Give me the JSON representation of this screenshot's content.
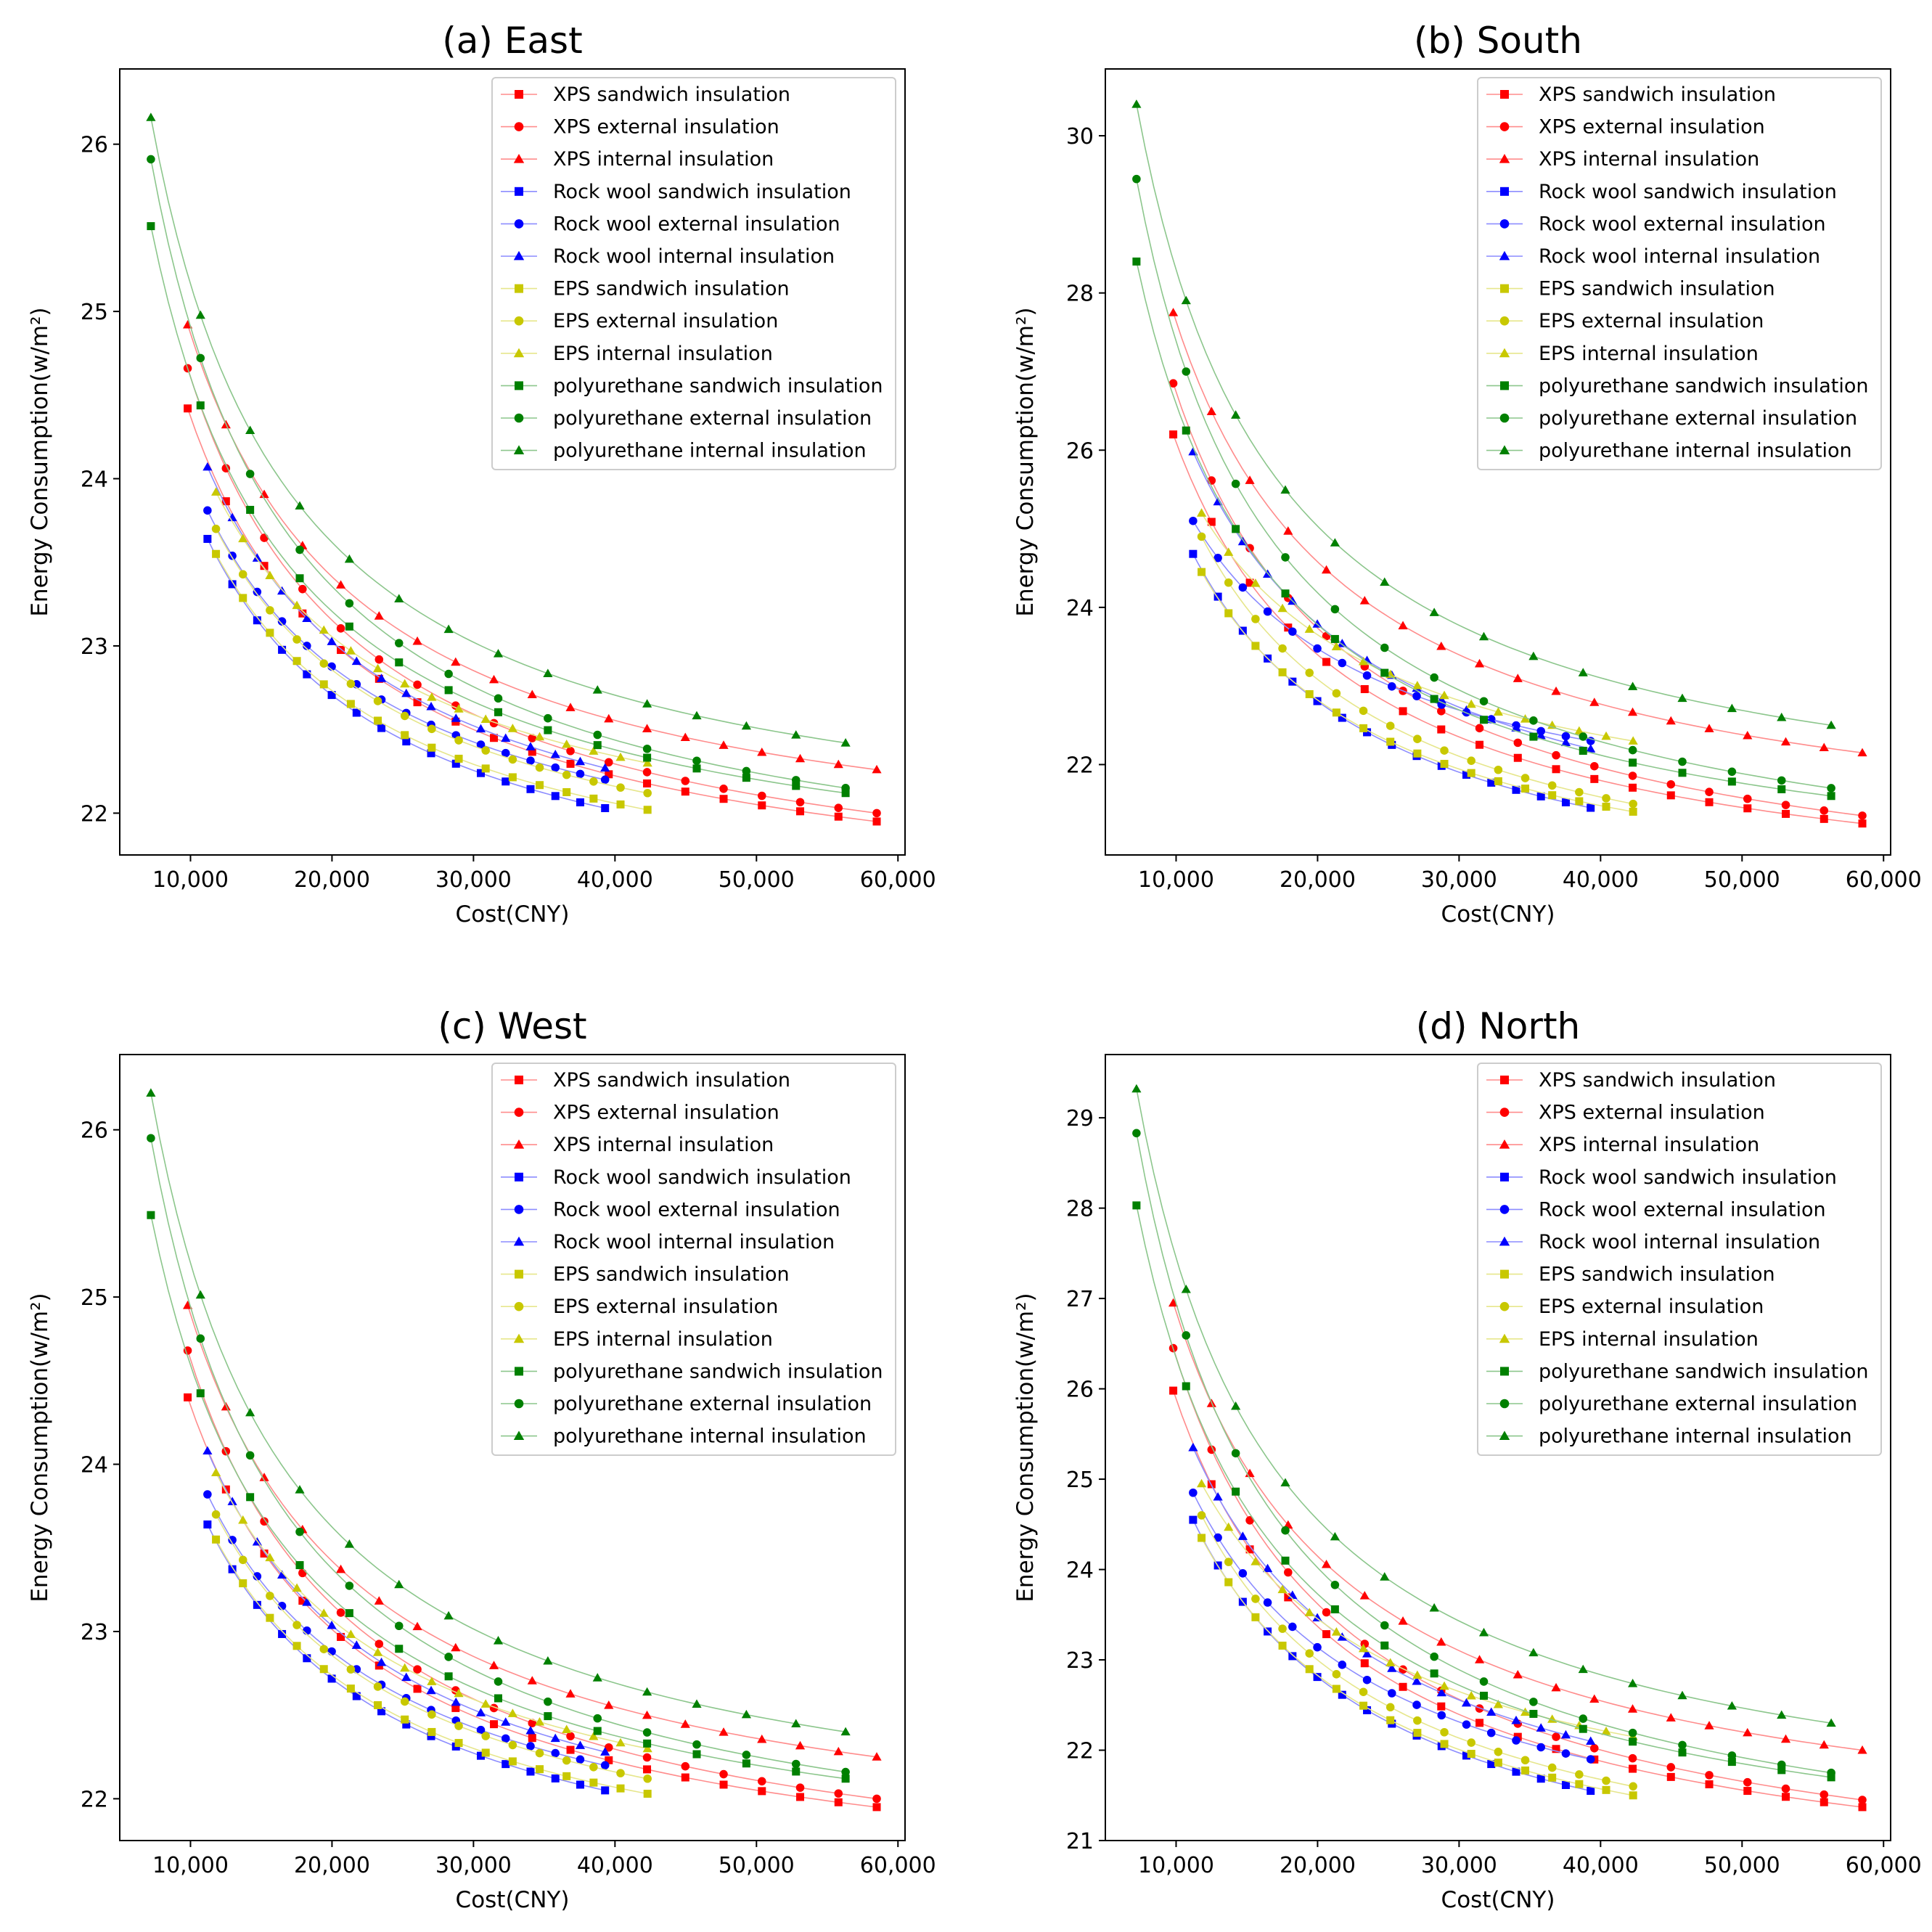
{
  "figure": {
    "xlabel": "Cost(CNY)",
    "ylabel": "Energy Consumption(w/m²)"
  },
  "legend_entries": [
    {
      "label": "XPS sandwich insulation",
      "color": "#ff0000",
      "marker": "square"
    },
    {
      "label": "XPS external insulation",
      "color": "#ff0000",
      "marker": "circle"
    },
    {
      "label": "XPS internal insulation",
      "color": "#ff0000",
      "marker": "triangle"
    },
    {
      "label": "Rock wool sandwich insulation",
      "color": "#0000ff",
      "marker": "square"
    },
    {
      "label": "Rock wool external insulation",
      "color": "#0000ff",
      "marker": "circle"
    },
    {
      "label": "Rock wool internal insulation",
      "color": "#0000ff",
      "marker": "triangle"
    },
    {
      "label": "EPS sandwich insulation",
      "color": "#c8c800",
      "marker": "square"
    },
    {
      "label": "EPS external insulation",
      "color": "#c8c800",
      "marker": "circle"
    },
    {
      "label": "EPS internal insulation",
      "color": "#c8c800",
      "marker": "triangle"
    },
    {
      "label": "polyurethane sandwich insulation",
      "color": "#008000",
      "marker": "square"
    },
    {
      "label": "polyurethane external insulation",
      "color": "#008000",
      "marker": "circle"
    },
    {
      "label": "polyurethane internal insulation",
      "color": "#008000",
      "marker": "triangle"
    }
  ],
  "chart_data": [
    {
      "type": "scatter",
      "title": "(a) East",
      "xlabel": "Cost(CNY)",
      "ylabel": "Energy Consumption(w/m²)",
      "xlim": [
        5000,
        60500
      ],
      "ylim": [
        21.75,
        26.45
      ],
      "xticks": [
        10000,
        20000,
        30000,
        40000,
        50000,
        60000
      ],
      "xtick_labels": [
        "10,000",
        "20,000",
        "30,000",
        "40,000",
        "50,000",
        "60,000"
      ],
      "yticks": [
        22,
        23,
        24,
        25,
        26
      ],
      "ytick_labels": [
        "22",
        "23",
        "24",
        "25",
        "26"
      ],
      "legend_position": "top-right",
      "series": [
        {
          "name": "XPS sandwich insulation",
          "x": [
            9800,
            58500
          ],
          "y": [
            24.42,
            21.95
          ],
          "points": 19
        },
        {
          "name": "XPS external insulation",
          "x": [
            9800,
            58500
          ],
          "y": [
            24.66,
            22.0
          ],
          "points": 19
        },
        {
          "name": "XPS internal insulation",
          "x": [
            9800,
            58500
          ],
          "y": [
            24.92,
            22.26
          ],
          "points": 19
        },
        {
          "name": "Rock wool sandwich insulation",
          "x": [
            11200,
            39300
          ],
          "y": [
            23.64,
            22.03
          ],
          "points": 17
        },
        {
          "name": "Rock wool external insulation",
          "x": [
            11200,
            39300
          ],
          "y": [
            23.81,
            22.2
          ],
          "points": 17
        },
        {
          "name": "Rock wool internal insulation",
          "x": [
            11200,
            39300
          ],
          "y": [
            24.07,
            22.27
          ],
          "points": 17
        },
        {
          "name": "EPS sandwich insulation",
          "x": [
            11800,
            42300
          ],
          "y": [
            23.55,
            22.02
          ],
          "points": 17
        },
        {
          "name": "EPS external insulation",
          "x": [
            11800,
            42300
          ],
          "y": [
            23.7,
            22.12
          ],
          "points": 17
        },
        {
          "name": "EPS internal insulation",
          "x": [
            11800,
            42300
          ],
          "y": [
            23.92,
            22.3
          ],
          "points": 17
        },
        {
          "name": "polyurethane sandwich insulation",
          "x": [
            7200,
            56300
          ],
          "y": [
            25.51,
            22.12
          ],
          "points": 15
        },
        {
          "name": "polyurethane external insulation",
          "x": [
            7200,
            56300
          ],
          "y": [
            25.91,
            22.15
          ],
          "points": 15
        },
        {
          "name": "polyurethane internal insulation",
          "x": [
            7200,
            56300
          ],
          "y": [
            26.16,
            22.42
          ],
          "points": 15
        }
      ]
    },
    {
      "type": "scatter",
      "title": "(b) South",
      "xlabel": "Cost(CNY)",
      "ylabel": "Energy Consumption(w/m²)",
      "xlim": [
        5000,
        60500
      ],
      "ylim": [
        20.85,
        30.85
      ],
      "xticks": [
        10000,
        20000,
        30000,
        40000,
        50000,
        60000
      ],
      "xtick_labels": [
        "10,000",
        "20,000",
        "30,000",
        "40,000",
        "50,000",
        "60,000"
      ],
      "yticks": [
        22,
        24,
        26,
        28,
        30
      ],
      "ytick_labels": [
        "22",
        "24",
        "26",
        "28",
        "30"
      ],
      "legend_position": "top-right",
      "series": [
        {
          "name": "XPS sandwich insulation",
          "x": [
            9800,
            58500
          ],
          "y": [
            26.2,
            21.25
          ],
          "points": 19
        },
        {
          "name": "XPS external insulation",
          "x": [
            9800,
            58500
          ],
          "y": [
            26.85,
            21.35
          ],
          "points": 19
        },
        {
          "name": "XPS internal insulation",
          "x": [
            9800,
            58500
          ],
          "y": [
            27.75,
            22.15
          ],
          "points": 19
        },
        {
          "name": "Rock wool sandwich insulation",
          "x": [
            11200,
            39300
          ],
          "y": [
            24.68,
            21.45
          ],
          "points": 17
        },
        {
          "name": "Rock wool external insulation",
          "x": [
            11200,
            39300
          ],
          "y": [
            25.1,
            22.3
          ],
          "points": 17
        },
        {
          "name": "Rock wool internal insulation",
          "x": [
            11200,
            39300
          ],
          "y": [
            25.98,
            22.2
          ],
          "points": 17
        },
        {
          "name": "EPS sandwich insulation",
          "x": [
            11800,
            42300
          ],
          "y": [
            24.45,
            21.4
          ],
          "points": 17
        },
        {
          "name": "EPS external insulation",
          "x": [
            11800,
            42300
          ],
          "y": [
            24.9,
            21.5
          ],
          "points": 17
        },
        {
          "name": "EPS internal insulation",
          "x": [
            11800,
            42300
          ],
          "y": [
            25.2,
            22.3
          ],
          "points": 17
        },
        {
          "name": "polyurethane sandwich insulation",
          "x": [
            7200,
            56300
          ],
          "y": [
            28.4,
            21.6
          ],
          "points": 15
        },
        {
          "name": "polyurethane external insulation",
          "x": [
            7200,
            56300
          ],
          "y": [
            29.45,
            21.7
          ],
          "points": 15
        },
        {
          "name": "polyurethane internal insulation",
          "x": [
            7200,
            56300
          ],
          "y": [
            30.4,
            22.5
          ],
          "points": 15
        }
      ]
    },
    {
      "type": "scatter",
      "title": "(c) West",
      "xlabel": "Cost(CNY)",
      "ylabel": "Energy Consumption(w/m²)",
      "xlim": [
        5000,
        60500
      ],
      "ylim": [
        21.75,
        26.45
      ],
      "xticks": [
        10000,
        20000,
        30000,
        40000,
        50000,
        60000
      ],
      "xtick_labels": [
        "10,000",
        "20,000",
        "30,000",
        "40,000",
        "50,000",
        "60,000"
      ],
      "yticks": [
        22,
        23,
        24,
        25,
        26
      ],
      "ytick_labels": [
        "22",
        "23",
        "24",
        "25",
        "26"
      ],
      "legend_position": "top-right",
      "series": [
        {
          "name": "XPS sandwich insulation",
          "x": [
            9800,
            58500
          ],
          "y": [
            24.4,
            21.95
          ],
          "points": 19
        },
        {
          "name": "XPS external insulation",
          "x": [
            9800,
            58500
          ],
          "y": [
            24.68,
            22.0
          ],
          "points": 19
        },
        {
          "name": "XPS internal insulation",
          "x": [
            9800,
            58500
          ],
          "y": [
            24.95,
            22.25
          ],
          "points": 19
        },
        {
          "name": "Rock wool sandwich insulation",
          "x": [
            11200,
            39300
          ],
          "y": [
            23.64,
            22.05
          ],
          "points": 17
        },
        {
          "name": "Rock wool external insulation",
          "x": [
            11200,
            39300
          ],
          "y": [
            23.82,
            22.2
          ],
          "points": 17
        },
        {
          "name": "Rock wool internal insulation",
          "x": [
            11200,
            39300
          ],
          "y": [
            24.08,
            22.28
          ],
          "points": 17
        },
        {
          "name": "EPS sandwich insulation",
          "x": [
            11800,
            42300
          ],
          "y": [
            23.55,
            22.03
          ],
          "points": 17
        },
        {
          "name": "EPS external insulation",
          "x": [
            11800,
            42300
          ],
          "y": [
            23.7,
            22.12
          ],
          "points": 17
        },
        {
          "name": "EPS internal insulation",
          "x": [
            11800,
            42300
          ],
          "y": [
            23.95,
            22.3
          ],
          "points": 17
        },
        {
          "name": "polyurethane sandwich insulation",
          "x": [
            7200,
            56300
          ],
          "y": [
            25.49,
            22.12
          ],
          "points": 15
        },
        {
          "name": "polyurethane external insulation",
          "x": [
            7200,
            56300
          ],
          "y": [
            25.95,
            22.16
          ],
          "points": 15
        },
        {
          "name": "polyurethane internal insulation",
          "x": [
            7200,
            56300
          ],
          "y": [
            26.22,
            22.4
          ],
          "points": 15
        }
      ]
    },
    {
      "type": "scatter",
      "title": "(d) North",
      "xlabel": "Cost(CNY)",
      "ylabel": "Energy Consumption(w/m²)",
      "xlim": [
        5000,
        60500
      ],
      "ylim": [
        21.0,
        29.7
      ],
      "xticks": [
        10000,
        20000,
        30000,
        40000,
        50000,
        60000
      ],
      "xtick_labels": [
        "10,000",
        "20,000",
        "30,000",
        "40,000",
        "50,000",
        "60,000"
      ],
      "yticks": [
        21,
        22,
        23,
        24,
        25,
        26,
        27,
        28,
        29
      ],
      "ytick_labels": [
        "21",
        "22",
        "23",
        "24",
        "25",
        "26",
        "27",
        "28",
        "29"
      ],
      "legend_position": "top-right",
      "series": [
        {
          "name": "XPS sandwich insulation",
          "x": [
            9800,
            58500
          ],
          "y": [
            25.98,
            21.37
          ],
          "points": 19
        },
        {
          "name": "XPS external insulation",
          "x": [
            9800,
            58500
          ],
          "y": [
            26.45,
            21.45
          ],
          "points": 19
        },
        {
          "name": "XPS internal insulation",
          "x": [
            9800,
            58500
          ],
          "y": [
            26.95,
            22.0
          ],
          "points": 19
        },
        {
          "name": "Rock wool sandwich insulation",
          "x": [
            11200,
            39300
          ],
          "y": [
            24.55,
            21.55
          ],
          "points": 17
        },
        {
          "name": "Rock wool external insulation",
          "x": [
            11200,
            39300
          ],
          "y": [
            24.85,
            21.9
          ],
          "points": 17
        },
        {
          "name": "Rock wool internal insulation",
          "x": [
            11200,
            39300
          ],
          "y": [
            25.35,
            22.1
          ],
          "points": 17
        },
        {
          "name": "EPS sandwich insulation",
          "x": [
            11800,
            42300
          ],
          "y": [
            24.35,
            21.5
          ],
          "points": 17
        },
        {
          "name": "EPS external insulation",
          "x": [
            11800,
            42300
          ],
          "y": [
            24.6,
            21.6
          ],
          "points": 17
        },
        {
          "name": "EPS internal insulation",
          "x": [
            11800,
            42300
          ],
          "y": [
            24.95,
            22.15
          ],
          "points": 17
        },
        {
          "name": "polyurethane sandwich insulation",
          "x": [
            7200,
            56300
          ],
          "y": [
            28.03,
            21.7
          ],
          "points": 15
        },
        {
          "name": "polyurethane external insulation",
          "x": [
            7200,
            56300
          ],
          "y": [
            28.83,
            21.75
          ],
          "points": 15
        },
        {
          "name": "polyurethane internal insulation",
          "x": [
            7200,
            56300
          ],
          "y": [
            29.32,
            22.3
          ],
          "points": 15
        }
      ]
    }
  ]
}
